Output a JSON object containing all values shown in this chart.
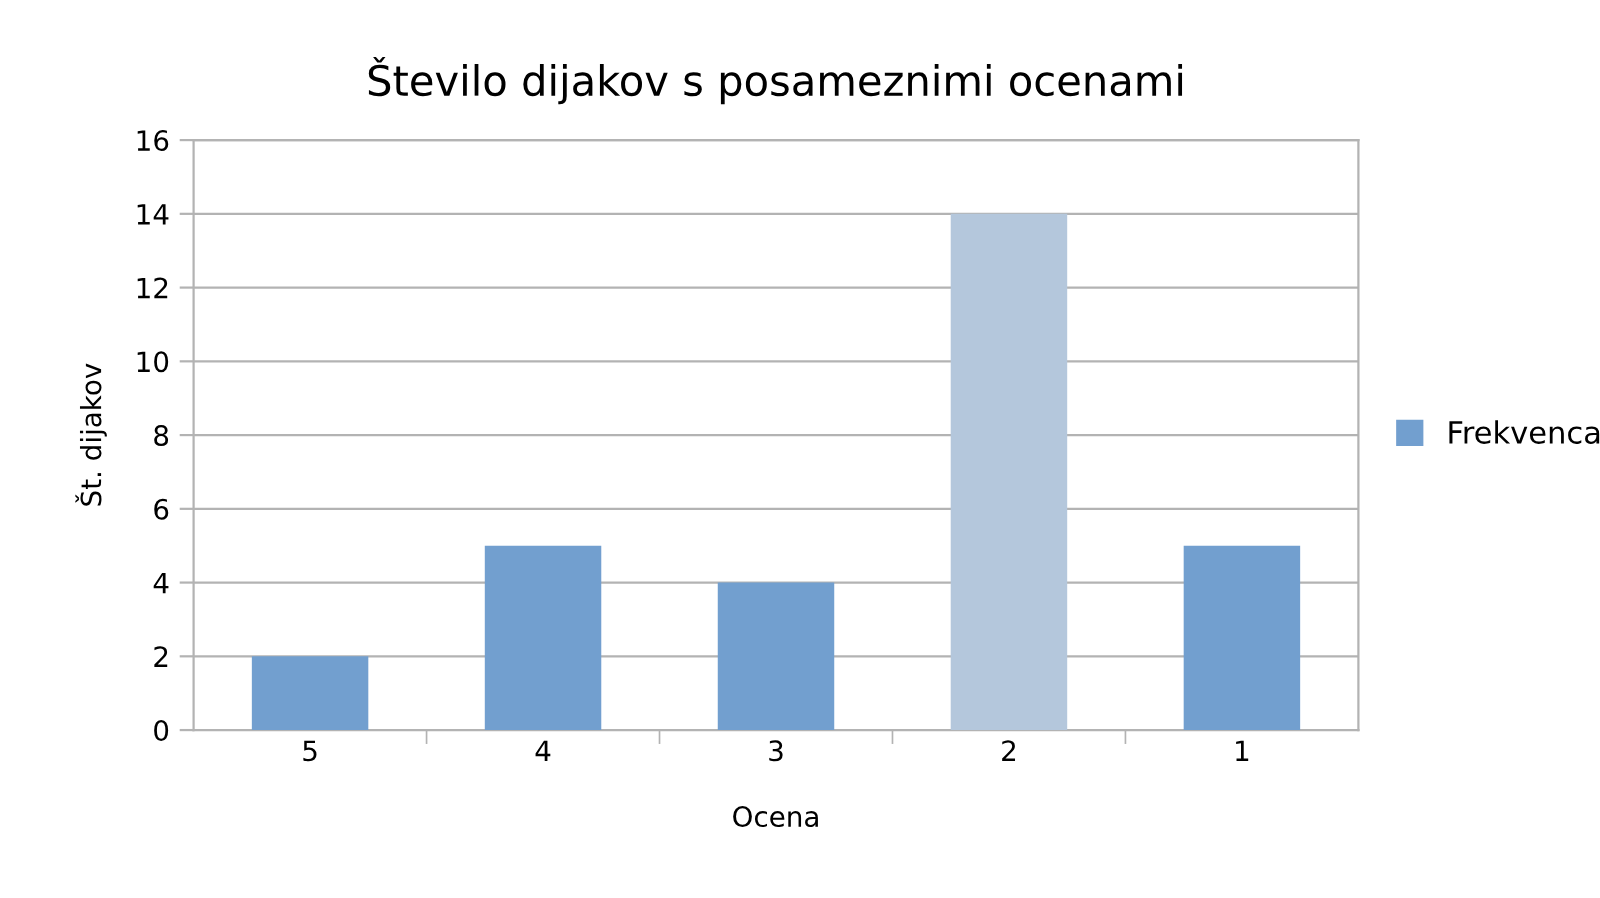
{
  "chart_data": {
    "type": "bar",
    "title": "Število dijakov s posameznimi ocenami",
    "xlabel": "Ocena",
    "ylabel": "Št. dijakov",
    "categories": [
      "5",
      "4",
      "3",
      "2",
      "1"
    ],
    "series": [
      {
        "name": "Frekvenca",
        "color": "#729fcf",
        "colors": [
          "#729fcf",
          "#729fcf",
          "#729fcf",
          "#b4c7dc",
          "#729fcf"
        ],
        "values": [
          2,
          5,
          4,
          14,
          5
        ]
      }
    ],
    "ylim": [
      0,
      16
    ],
    "yticks": [
      0,
      2,
      4,
      6,
      8,
      10,
      12,
      14,
      16
    ],
    "grid": "y",
    "legend": "right"
  }
}
